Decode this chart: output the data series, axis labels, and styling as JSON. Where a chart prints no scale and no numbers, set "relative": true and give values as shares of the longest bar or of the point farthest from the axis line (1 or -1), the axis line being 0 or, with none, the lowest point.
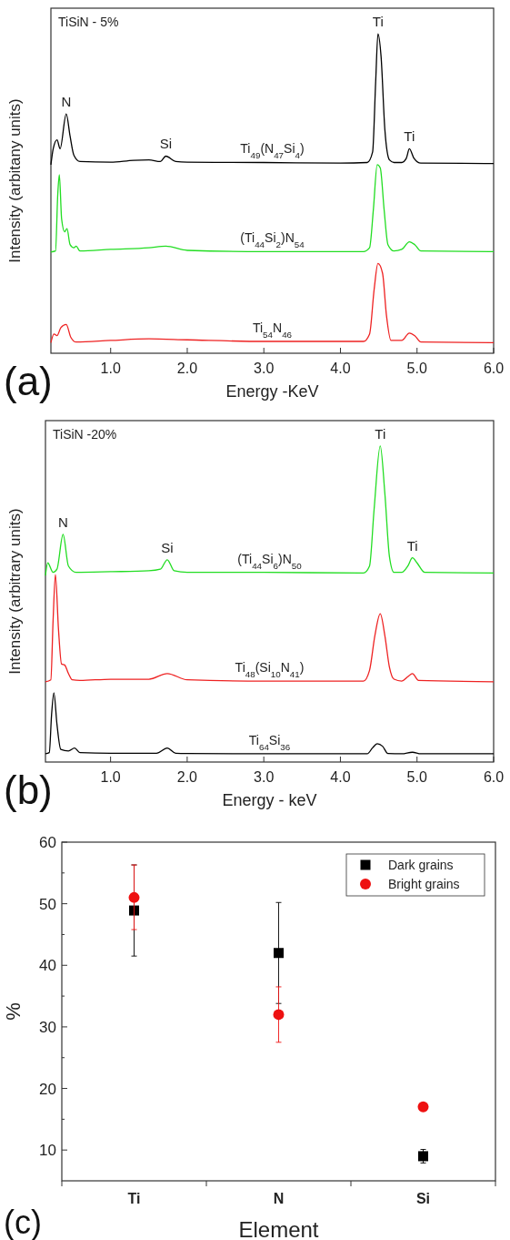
{
  "chart_data": [
    {
      "type": "line",
      "title": "TiSiN - 5%",
      "xlabel": "Energy -KeV",
      "ylabel": "Intensity (arbitany units)",
      "relative": true,
      "xlim": [
        0.22,
        6.0
      ],
      "xticks": [
        {
          "value": 1,
          "label": "1.0"
        },
        {
          "value": 2,
          "label": "2.0"
        },
        {
          "value": 3,
          "label": "3.0"
        },
        {
          "value": 4,
          "label": "4.0"
        },
        {
          "value": 5,
          "label": "5.0"
        },
        {
          "value": 6,
          "label": "6.0"
        }
      ],
      "series": [
        {
          "name": "Ti$_{49}$(N$_{47}$Si$_{4}$)",
          "color": "#000000",
          "x": [
            0.22,
            0.25,
            0.3,
            0.34,
            0.42,
            0.47,
            0.52,
            0.6,
            1.0,
            1.3,
            1.5,
            1.65,
            1.72,
            1.85,
            2.0,
            3.0,
            4.0,
            4.35,
            4.42,
            4.46,
            4.49,
            4.53,
            4.58,
            4.64,
            4.7,
            4.8,
            4.86,
            4.9,
            4.96,
            5.05,
            6.0
          ],
          "values": [
            0.59,
            0.64,
            0.668,
            0.64,
            0.749,
            0.68,
            0.62,
            0.6,
            0.598,
            0.604,
            0.605,
            0.6,
            0.617,
            0.6,
            0.598,
            0.597,
            0.595,
            0.597,
            0.63,
            0.85,
            1.0,
            0.93,
            0.7,
            0.605,
            0.597,
            0.597,
            0.61,
            0.64,
            0.61,
            0.595,
            0.594
          ]
        },
        {
          "name": "(Ti$_{44}$Si$_{2}$)N$_{54}$",
          "color": "#22dd22",
          "x": [
            0.22,
            0.28,
            0.31,
            0.33,
            0.36,
            0.4,
            0.43,
            0.47,
            0.52,
            0.55,
            0.6,
            1.0,
            1.5,
            1.72,
            2.0,
            3.0,
            4.3,
            4.38,
            4.43,
            4.48,
            4.52,
            4.57,
            4.62,
            4.7,
            4.8,
            4.9,
            4.97,
            5.05,
            6.0
          ],
          "values": [
            0.317,
            0.32,
            0.5,
            0.559,
            0.42,
            0.38,
            0.39,
            0.34,
            0.33,
            0.335,
            0.32,
            0.325,
            0.33,
            0.335,
            0.322,
            0.318,
            0.318,
            0.33,
            0.45,
            0.59,
            0.58,
            0.45,
            0.34,
            0.32,
            0.325,
            0.349,
            0.34,
            0.32,
            0.318
          ]
        },
        {
          "name": "Ti$_{54}$N$_{46}$",
          "color": "#ee2222",
          "x": [
            0.22,
            0.26,
            0.3,
            0.35,
            0.42,
            0.48,
            0.55,
            1.0,
            1.5,
            2.0,
            3.0,
            4.3,
            4.38,
            4.44,
            4.49,
            4.55,
            4.6,
            4.66,
            4.8,
            4.9,
            4.97,
            5.05,
            6.0
          ],
          "values": [
            0.033,
            0.06,
            0.055,
            0.08,
            0.09,
            0.05,
            0.035,
            0.04,
            0.045,
            0.042,
            0.037,
            0.037,
            0.06,
            0.2,
            0.281,
            0.25,
            0.12,
            0.04,
            0.04,
            0.063,
            0.055,
            0.035,
            0.033
          ]
        }
      ],
      "annotations": [
        {
          "text": "N",
          "x": 0.42,
          "y": 0.749
        },
        {
          "text": "Si",
          "x": 1.72,
          "y": 0.617
        },
        {
          "text": "Ti",
          "x": 4.49,
          "y": 1.0
        },
        {
          "text": "Ti",
          "x": 4.9,
          "y": 0.64
        },
        "(a)"
      ]
    },
    {
      "type": "line",
      "title": "TiSiN -20%",
      "xlabel": "Energy - keV",
      "ylabel": "Intensity (arbitrary units)",
      "relative": true,
      "xlim": [
        0.15,
        6.0
      ],
      "xticks": [
        {
          "value": 1,
          "label": "1.0"
        },
        {
          "value": 2,
          "label": "2.0"
        },
        {
          "value": 3,
          "label": "3.0"
        },
        {
          "value": 4,
          "label": "4.0"
        },
        {
          "value": 5,
          "label": "5.0"
        },
        {
          "value": 6,
          "label": "6.0"
        }
      ],
      "series": [
        {
          "name": "(Ti$_{44}$Si$_{6}$)N$_{50}$",
          "color": "#22dd22",
          "x": [
            0.15,
            0.18,
            0.25,
            0.3,
            0.38,
            0.45,
            0.55,
            1.0,
            1.5,
            1.65,
            1.74,
            1.83,
            2.0,
            3.0,
            4.3,
            4.38,
            4.44,
            4.52,
            4.58,
            4.64,
            4.7,
            4.8,
            4.88,
            4.94,
            5.0,
            5.1,
            6.0
          ],
          "values": [
            0.59,
            0.63,
            0.6,
            0.61,
            0.72,
            0.62,
            0.6,
            0.602,
            0.605,
            0.61,
            0.64,
            0.605,
            0.6,
            0.6,
            0.598,
            0.62,
            0.8,
            1.0,
            0.85,
            0.65,
            0.6,
            0.6,
            0.62,
            0.646,
            0.63,
            0.6,
            0.598
          ]
        },
        {
          "name": "Ti$_{48}$(Si$_{10}$N$_{41}$)",
          "color": "#ee2222",
          "x": [
            0.15,
            0.22,
            0.25,
            0.28,
            0.32,
            0.36,
            0.4,
            0.45,
            0.5,
            0.6,
            1.0,
            1.5,
            1.74,
            2.0,
            3.0,
            4.3,
            4.38,
            4.45,
            4.52,
            4.58,
            4.64,
            4.7,
            4.8,
            4.88,
            4.94,
            5.02,
            6.0
          ],
          "values": [
            0.254,
            0.26,
            0.45,
            0.593,
            0.42,
            0.31,
            0.307,
            0.28,
            0.26,
            0.258,
            0.262,
            0.262,
            0.28,
            0.26,
            0.256,
            0.256,
            0.29,
            0.4,
            0.469,
            0.4,
            0.3,
            0.262,
            0.256,
            0.27,
            0.28,
            0.258,
            0.254
          ]
        },
        {
          "name": "Ti$_{64}$Si$_{36}$",
          "color": "#000000",
          "x": [
            0.15,
            0.2,
            0.23,
            0.26,
            0.3,
            0.35,
            0.45,
            0.53,
            0.6,
            1.0,
            1.6,
            1.74,
            1.85,
            2.0,
            3.0,
            4.35,
            4.42,
            4.48,
            4.55,
            4.62,
            4.8,
            4.94,
            5.05,
            6.0
          ],
          "values": [
            0.026,
            0.03,
            0.15,
            0.219,
            0.12,
            0.04,
            0.035,
            0.044,
            0.03,
            0.028,
            0.028,
            0.044,
            0.028,
            0.027,
            0.026,
            0.026,
            0.045,
            0.058,
            0.05,
            0.027,
            0.026,
            0.031,
            0.026,
            0.026
          ]
        }
      ],
      "annotations": [
        {
          "text": "N",
          "x": 0.38,
          "y": 0.72
        },
        {
          "text": "Si",
          "x": 1.74,
          "y": 0.64
        },
        {
          "text": "Ti",
          "x": 4.52,
          "y": 1.0
        },
        {
          "text": "Ti",
          "x": 4.94,
          "y": 0.646
        },
        "(b)"
      ]
    },
    {
      "type": "scatter",
      "xlabel": "Element",
      "ylabel": "%",
      "categories": [
        "Ti",
        "N",
        "Si"
      ],
      "ylim": [
        5,
        60
      ],
      "yticks": [
        10,
        20,
        30,
        40,
        50,
        60
      ],
      "legend": "top right",
      "series": [
        {
          "name": "Dark grains",
          "color": "#000000",
          "marker": "square",
          "values": [
            48.9,
            42,
            9
          ],
          "errors": [
            [
              41.5,
              56.3
            ],
            [
              33.8,
              50.2
            ],
            [
              7.9,
              10.1
            ]
          ]
        },
        {
          "name": "Bright grains",
          "color": "#ee1111",
          "marker": "circle",
          "values": [
            51,
            32,
            17
          ],
          "errors": [
            [
              45.8,
              56.3
            ],
            [
              27.5,
              36.5
            ],
            null
          ]
        }
      ],
      "annotations": [
        "(c)"
      ]
    }
  ]
}
